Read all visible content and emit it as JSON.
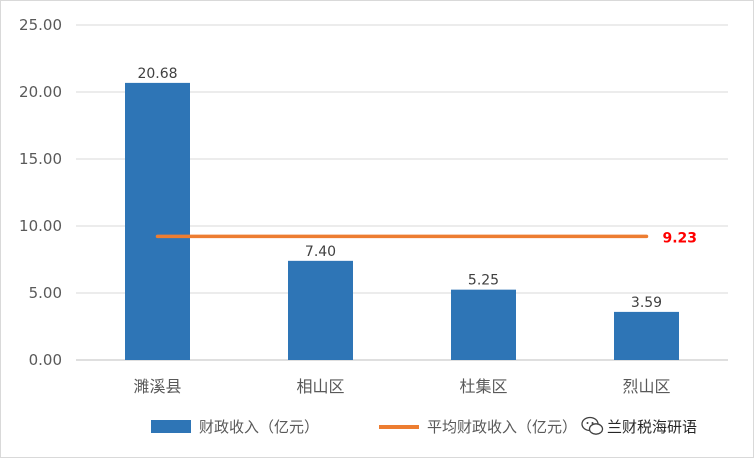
{
  "chart_data": {
    "type": "bar",
    "categories": [
      "濉溪县",
      "相山区",
      "杜集区",
      "烈山区"
    ],
    "series": [
      {
        "name": "财政收入（亿元）",
        "type": "bar",
        "values": [
          20.68,
          7.4,
          5.25,
          3.59
        ],
        "color": "#2e75b6"
      },
      {
        "name": "平均财政收入（亿元）",
        "type": "line",
        "values": [
          9.23,
          9.23,
          9.23,
          9.23
        ],
        "color": "#ed7d31"
      }
    ],
    "data_labels": [
      "20.68",
      "7.40",
      "5.25",
      "3.59"
    ],
    "average_label": "9.23",
    "average_label_color": "#ff0000",
    "ylim": [
      0,
      25
    ],
    "yticks": [
      "0.00",
      "5.00",
      "10.00",
      "15.00",
      "20.00",
      "25.00"
    ],
    "ytick_values": [
      0,
      5,
      10,
      15,
      20,
      25
    ],
    "grid": true,
    "legend_position": "bottom",
    "title": "",
    "xlabel": "",
    "ylabel": ""
  },
  "watermark": {
    "icon": "wechat-icon",
    "text": "兰财税海研语"
  }
}
